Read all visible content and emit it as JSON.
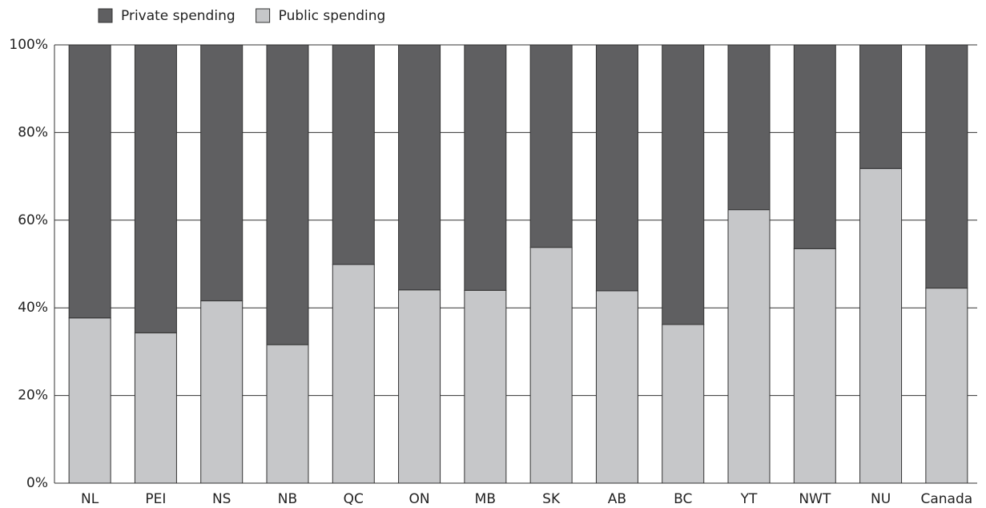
{
  "chart_data": {
    "type": "stacked_bar",
    "categories": [
      "NL",
      "PEI",
      "NS",
      "NB",
      "QC",
      "ON",
      "MB",
      "SK",
      "AB",
      "BC",
      "YT",
      "NWT",
      "NU",
      "Canada"
    ],
    "series": [
      {
        "name": "Public spending",
        "color": "#c6c7c9",
        "values": [
          37.7,
          34.3,
          41.6,
          31.6,
          49.9,
          44.1,
          44.0,
          53.8,
          43.9,
          36.2,
          62.4,
          53.5,
          71.8,
          44.5
        ]
      },
      {
        "name": "Private spending",
        "color": "#5f5f61",
        "values": [
          62.3,
          65.7,
          58.4,
          68.4,
          50.1,
          55.9,
          56.0,
          46.2,
          56.1,
          63.8,
          37.6,
          46.5,
          28.2,
          55.5
        ]
      }
    ],
    "legend_order": [
      1,
      0
    ],
    "ylim": [
      0,
      100
    ],
    "yticks": [
      {
        "value": 0,
        "label": "0%"
      },
      {
        "value": 20,
        "label": "20%"
      },
      {
        "value": 40,
        "label": "40%"
      },
      {
        "value": 60,
        "label": "60%"
      },
      {
        "value": 80,
        "label": "80%"
      },
      {
        "value": 100,
        "label": "100%"
      }
    ],
    "grid": true
  }
}
